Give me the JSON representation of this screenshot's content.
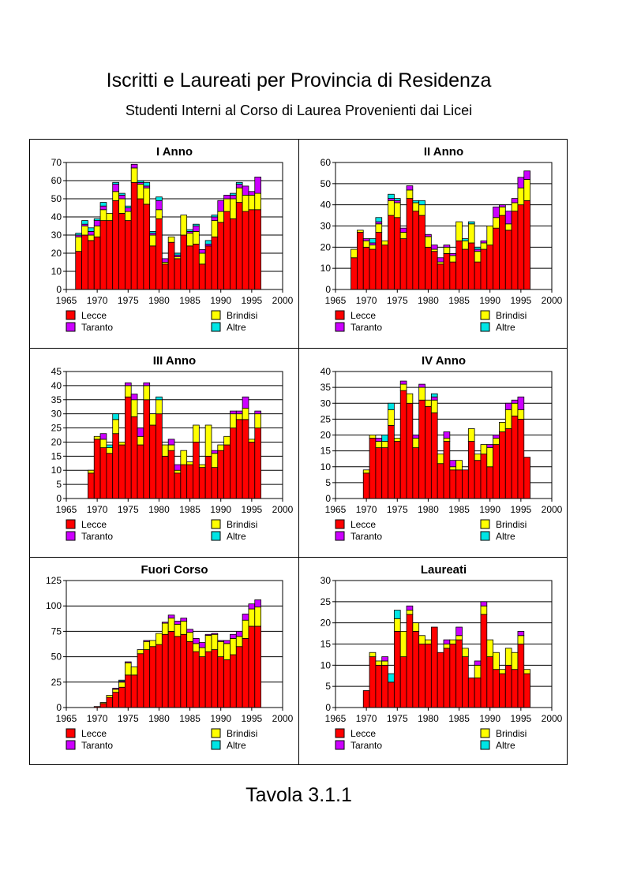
{
  "page": {
    "title": "Iscritti e Laureati per Provincia di Residenza",
    "subtitle": "Studenti Interni al Corso di Laurea Provenienti dai Licei",
    "footer": "Tavola 3.1.1"
  },
  "colors": {
    "Lecce": "#ff0000",
    "Brindisi": "#ffff00",
    "Taranto": "#cc00ff",
    "Altre": "#00e5e5"
  },
  "chart_data": [
    {
      "type": "bar",
      "stacked": true,
      "title": "I Anno",
      "xlim": [
        1965,
        2000
      ],
      "xticks": [
        1965,
        1970,
        1975,
        1980,
        1985,
        1990,
        1995,
        2000
      ],
      "ylim": [
        0,
        70
      ],
      "yticks": [
        0,
        10,
        20,
        30,
        40,
        50,
        60,
        70
      ],
      "grid": true,
      "legend": "bottom",
      "x": [
        1967,
        1968,
        1969,
        1970,
        1971,
        1972,
        1973,
        1974,
        1975,
        1976,
        1977,
        1978,
        1979,
        1980,
        1981,
        1982,
        1983,
        1984,
        1985,
        1986,
        1987,
        1988,
        1989,
        1990,
        1991,
        1992,
        1993,
        1994,
        1995,
        1996
      ],
      "series": [
        {
          "name": "Lecce",
          "values": [
            21,
            30,
            27,
            29,
            38,
            38,
            49,
            42,
            38,
            59,
            50,
            47,
            24,
            39,
            14,
            26,
            17,
            30,
            24,
            25,
            14,
            24,
            29,
            37,
            43,
            39,
            48,
            43,
            44,
            44
          ]
        },
        {
          "name": "Brindisi",
          "values": [
            8,
            5,
            3,
            6,
            6,
            4,
            5,
            8,
            5,
            8,
            8,
            9,
            6,
            5,
            1,
            3,
            1,
            11,
            7,
            7,
            6,
            0,
            9,
            6,
            7,
            11,
            8,
            9,
            8,
            9
          ]
        },
        {
          "name": "Taranto",
          "values": [
            1,
            1,
            2,
            3,
            2,
            0,
            4,
            2,
            2,
            2,
            1,
            1,
            1,
            5,
            2,
            0,
            1,
            0,
            1,
            3,
            2,
            1,
            2,
            6,
            2,
            2,
            2,
            5,
            2,
            9
          ]
        },
        {
          "name": "Altre",
          "values": [
            1,
            2,
            2,
            1,
            2,
            0,
            1,
            1,
            1,
            0,
            1,
            2,
            1,
            2,
            0,
            0,
            1,
            0,
            1,
            1,
            0,
            2,
            1,
            0,
            0,
            1,
            1,
            0,
            0,
            0
          ]
        }
      ],
      "legend_labels": [
        "Lecce",
        "Brindisi",
        "Taranto",
        "Altre"
      ]
    },
    {
      "type": "bar",
      "stacked": true,
      "title": "II Anno",
      "xlim": [
        1965,
        2000
      ],
      "xticks": [
        1965,
        1970,
        1975,
        1980,
        1985,
        1990,
        1995,
        2000
      ],
      "ylim": [
        0,
        60
      ],
      "yticks": [
        0,
        10,
        20,
        30,
        40,
        50,
        60
      ],
      "grid": true,
      "legend": "bottom",
      "x": [
        1968,
        1969,
        1970,
        1971,
        1972,
        1973,
        1974,
        1975,
        1976,
        1977,
        1978,
        1979,
        1980,
        1981,
        1982,
        1983,
        1984,
        1985,
        1986,
        1987,
        1988,
        1989,
        1990,
        1991,
        1992,
        1993,
        1994,
        1995,
        1996
      ],
      "series": [
        {
          "name": "Lecce",
          "values": [
            15,
            27,
            20,
            19,
            27,
            21,
            35,
            34,
            24,
            43,
            37,
            35,
            20,
            18,
            12,
            17,
            13,
            23,
            19,
            22,
            13,
            19,
            21,
            29,
            35,
            28,
            37,
            40,
            42
          ]
        },
        {
          "name": "Brindisi",
          "values": [
            4,
            1,
            3,
            2,
            4,
            2,
            7,
            7,
            3,
            4,
            4,
            5,
            5,
            1,
            1,
            3,
            3,
            9,
            4,
            9,
            5,
            3,
            9,
            5,
            4,
            3,
            4,
            8,
            10
          ]
        },
        {
          "name": "Taranto",
          "values": [
            0,
            0,
            1,
            1,
            1,
            0,
            1,
            1,
            2,
            2,
            0,
            0,
            1,
            2,
            2,
            1,
            1,
            0,
            0,
            0,
            1,
            1,
            0,
            5,
            1,
            6,
            2,
            5,
            4
          ]
        },
        {
          "name": "Altre",
          "values": [
            0,
            0,
            0,
            2,
            2,
            0,
            2,
            1,
            0,
            0,
            1,
            2,
            0,
            0,
            0,
            0,
            0,
            0,
            1,
            1,
            1,
            0,
            0,
            0,
            0,
            0,
            0,
            0,
            0
          ]
        }
      ],
      "legend_labels": [
        "Lecce",
        "Brindisi",
        "Taranto",
        "Altre"
      ]
    },
    {
      "type": "bar",
      "stacked": true,
      "title": "III Anno",
      "xlim": [
        1965,
        2000
      ],
      "xticks": [
        1965,
        1970,
        1975,
        1980,
        1985,
        1990,
        1995,
        2000
      ],
      "ylim": [
        0,
        45
      ],
      "yticks": [
        0,
        5,
        10,
        15,
        20,
        25,
        30,
        35,
        40,
        45
      ],
      "grid": true,
      "legend": "bottom",
      "x": [
        1969,
        1970,
        1971,
        1972,
        1973,
        1974,
        1975,
        1976,
        1977,
        1978,
        1979,
        1980,
        1981,
        1982,
        1983,
        1984,
        1985,
        1986,
        1987,
        1988,
        1989,
        1990,
        1991,
        1992,
        1993,
        1994,
        1995,
        1996
      ],
      "series": [
        {
          "name": "Lecce",
          "values": [
            9,
            21,
            18,
            16,
            23,
            19,
            36,
            29,
            19,
            35,
            26,
            30,
            15,
            17,
            9,
            12,
            12,
            20,
            11,
            15,
            11,
            17,
            19,
            25,
            28,
            28,
            20,
            25
          ]
        },
        {
          "name": "Brindisi",
          "values": [
            1,
            1,
            3,
            2,
            5,
            1,
            4,
            6,
            3,
            5,
            4,
            5,
            4,
            2,
            1,
            5,
            1,
            6,
            1,
            11,
            5,
            2,
            3,
            5,
            2,
            4,
            1,
            5
          ]
        },
        {
          "name": "Taranto",
          "values": [
            0,
            0,
            2,
            0,
            0,
            0,
            1,
            2,
            3,
            1,
            0,
            0,
            0,
            2,
            2,
            0,
            0,
            0,
            0,
            0,
            1,
            0,
            0,
            1,
            1,
            4,
            0,
            1
          ]
        },
        {
          "name": "Altre",
          "values": [
            0,
            0,
            0,
            1,
            2,
            0,
            0,
            0,
            0,
            0,
            0,
            1,
            0,
            0,
            0,
            0,
            0,
            0,
            0,
            0,
            0,
            0,
            0,
            0,
            0,
            0,
            0,
            0
          ]
        }
      ],
      "legend_labels": [
        "Lecce",
        "Brindisi",
        "Taranto",
        "Altre"
      ]
    },
    {
      "type": "bar",
      "stacked": true,
      "title": "IV Anno",
      "xlim": [
        1965,
        2000
      ],
      "xticks": [
        1965,
        1970,
        1975,
        1980,
        1985,
        1990,
        1995,
        2000
      ],
      "ylim": [
        0,
        40
      ],
      "yticks": [
        0,
        5,
        10,
        15,
        20,
        25,
        30,
        35,
        40
      ],
      "grid": true,
      "legend": "bottom",
      "x": [
        1970,
        1971,
        1972,
        1973,
        1974,
        1975,
        1976,
        1977,
        1978,
        1979,
        1980,
        1981,
        1982,
        1983,
        1984,
        1985,
        1986,
        1987,
        1988,
        1989,
        1990,
        1991,
        1992,
        1993,
        1994,
        1995,
        1996
      ],
      "series": [
        {
          "name": "Lecce",
          "values": [
            8,
            19,
            16,
            16,
            23,
            18,
            34,
            30,
            16,
            31,
            29,
            27,
            11,
            18,
            9,
            9,
            9,
            18,
            12,
            14,
            10,
            17,
            21,
            22,
            26,
            25,
            13
          ]
        },
        {
          "name": "Brindisi",
          "values": [
            1,
            1,
            2,
            2,
            5,
            1,
            2,
            3,
            3,
            4,
            2,
            4,
            3,
            1,
            1,
            3,
            0,
            4,
            2,
            3,
            6,
            2,
            3,
            6,
            4,
            3,
            0
          ]
        },
        {
          "name": "Taranto",
          "values": [
            0,
            0,
            1,
            0,
            0,
            0,
            1,
            0,
            1,
            1,
            0,
            1,
            0,
            2,
            2,
            0,
            0,
            0,
            0,
            0,
            1,
            1,
            0,
            2,
            1,
            4,
            0
          ]
        },
        {
          "name": "Altre",
          "values": [
            0,
            0,
            0,
            2,
            2,
            0,
            0,
            0,
            0,
            0,
            0,
            1,
            0,
            0,
            0,
            0,
            0,
            0,
            0,
            0,
            0,
            0,
            0,
            0,
            0,
            0,
            0
          ]
        }
      ],
      "legend_labels": [
        "Lecce",
        "Brindisi",
        "Taranto",
        "Altre"
      ]
    },
    {
      "type": "bar",
      "stacked": true,
      "title": "Fuori Corso",
      "xlim": [
        1965,
        2000
      ],
      "xticks": [
        1965,
        1970,
        1975,
        1980,
        1985,
        1990,
        1995,
        2000
      ],
      "ylim": [
        0,
        125
      ],
      "yticks": [
        0,
        25,
        50,
        75,
        100,
        125
      ],
      "grid": true,
      "legend": "bottom",
      "x": [
        1970,
        1971,
        1972,
        1973,
        1974,
        1975,
        1976,
        1977,
        1978,
        1979,
        1980,
        1981,
        1982,
        1983,
        1984,
        1985,
        1986,
        1987,
        1988,
        1989,
        1990,
        1991,
        1992,
        1993,
        1994,
        1995,
        1996
      ],
      "series": [
        {
          "name": "Lecce",
          "values": [
            1,
            4,
            10,
            15,
            20,
            32,
            32,
            53,
            57,
            60,
            62,
            72,
            75,
            70,
            72,
            65,
            55,
            50,
            55,
            57,
            50,
            47,
            52,
            60,
            68,
            80,
            80
          ]
        },
        {
          "name": "Brindisi",
          "values": [
            0,
            1,
            2,
            3,
            5,
            12,
            8,
            4,
            8,
            6,
            11,
            11,
            13,
            12,
            13,
            9,
            8,
            9,
            16,
            15,
            15,
            16,
            16,
            10,
            18,
            17,
            19
          ]
        },
        {
          "name": "Taranto",
          "values": [
            0,
            0,
            0,
            1,
            1,
            1,
            0,
            0,
            1,
            0,
            0,
            1,
            3,
            3,
            3,
            3,
            5,
            5,
            1,
            1,
            1,
            3,
            4,
            5,
            6,
            5,
            7
          ]
        },
        {
          "name": "Altre",
          "values": [
            0,
            0,
            0,
            0,
            1,
            0,
            0,
            0,
            0,
            0,
            0,
            0,
            0,
            0,
            0,
            0,
            0,
            0,
            0,
            0,
            0,
            0,
            0,
            0,
            0,
            0,
            0
          ]
        }
      ],
      "legend_labels": [
        "Lecce",
        "Brindisi",
        "Taranto",
        "Altre"
      ]
    },
    {
      "type": "bar",
      "stacked": true,
      "title": "Laureati",
      "xlim": [
        1965,
        2000
      ],
      "xticks": [
        1965,
        1970,
        1975,
        1980,
        1985,
        1990,
        1995,
        2000
      ],
      "ylim": [
        0,
        30
      ],
      "yticks": [
        0,
        5,
        10,
        15,
        20,
        25,
        30
      ],
      "grid": true,
      "legend": "bottom",
      "x": [
        1970,
        1971,
        1972,
        1973,
        1974,
        1975,
        1976,
        1977,
        1978,
        1979,
        1980,
        1981,
        1982,
        1983,
        1984,
        1985,
        1986,
        1987,
        1988,
        1989,
        1990,
        1991,
        1992,
        1993,
        1994,
        1995,
        1996
      ],
      "series": [
        {
          "name": "Lecce",
          "values": [
            4,
            12,
            10,
            10,
            6,
            18,
            12,
            22,
            18,
            15,
            15,
            19,
            13,
            14,
            15,
            16,
            12,
            7,
            7,
            22,
            12,
            9,
            8,
            10,
            9,
            15,
            8
          ]
        },
        {
          "name": "Brindisi",
          "values": [
            0,
            1,
            1,
            1,
            0,
            3,
            6,
            1,
            2,
            2,
            1,
            0,
            0,
            1,
            1,
            1,
            2,
            0,
            3,
            2,
            4,
            4,
            1,
            4,
            4,
            2,
            1
          ]
        },
        {
          "name": "Taranto",
          "values": [
            0,
            0,
            0,
            1,
            0,
            0,
            0,
            1,
            0,
            0,
            0,
            0,
            0,
            1,
            0,
            2,
            0,
            0,
            1,
            1,
            0,
            0,
            0,
            0,
            0,
            1,
            0
          ]
        },
        {
          "name": "Altre",
          "values": [
            0,
            0,
            0,
            0,
            2,
            2,
            0,
            0,
            0,
            0,
            0,
            0,
            0,
            0,
            0,
            0,
            0,
            0,
            0,
            0,
            0,
            0,
            0,
            0,
            0,
            0,
            0
          ]
        }
      ],
      "legend_labels": [
        "Lecce",
        "Brindisi",
        "Taranto",
        "Altre"
      ]
    }
  ]
}
